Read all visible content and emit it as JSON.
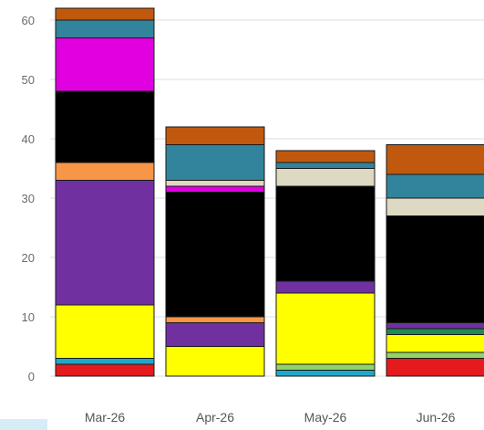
{
  "chart_data": {
    "type": "bar",
    "stacked": true,
    "title": "",
    "xlabel": "",
    "ylabel": "",
    "ylim": [
      -2,
      61
    ],
    "yticks": [
      0,
      10,
      20,
      30,
      40,
      50,
      60
    ],
    "grid": true,
    "legend": "none",
    "categories": [
      "Mar-26",
      "Apr-26",
      "May-26",
      "Jun-26"
    ],
    "series": [
      {
        "color": "#e41a1c",
        "values": [
          2,
          0,
          0,
          3
        ]
      },
      {
        "color": "#1fa9c9",
        "values": [
          1,
          0,
          1,
          0
        ]
      },
      {
        "color": "#8fd46b",
        "values": [
          0,
          0,
          1,
          1
        ]
      },
      {
        "color": "#ffff00",
        "values": [
          9,
          5,
          12,
          3
        ]
      },
      {
        "color": "#1e8c4e",
        "values": [
          0,
          0,
          0,
          1
        ]
      },
      {
        "color": "#7030a0",
        "values": [
          21,
          4,
          2,
          1
        ]
      },
      {
        "color": "#f79646",
        "values": [
          3,
          1,
          0,
          0
        ]
      },
      {
        "color": "#000000",
        "values": [
          12,
          21,
          16,
          18
        ]
      },
      {
        "color": "#e000e0",
        "values": [
          9,
          1,
          0,
          0
        ]
      },
      {
        "color": "#ddd9c3",
        "values": [
          0,
          1,
          3,
          3
        ]
      },
      {
        "color": "#31849b",
        "values": [
          3,
          6,
          1,
          4
        ]
      },
      {
        "color": "#c0590e",
        "values": [
          2,
          3,
          2,
          5
        ]
      }
    ]
  }
}
